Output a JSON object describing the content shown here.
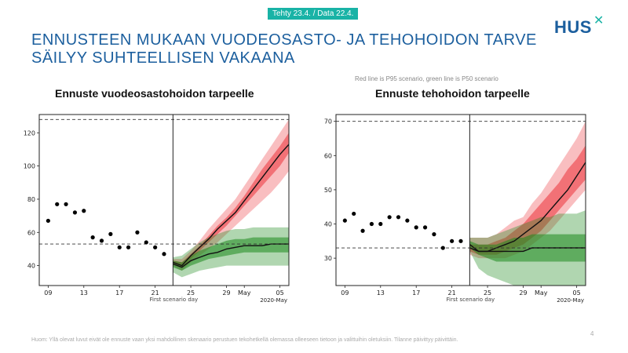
{
  "header": {
    "date_badge": "Tehty 23.4. / Data 22.4.",
    "title": "ENNUSTEEN MUKAAN VUODEOSASTO- JA TEHOHOIDON TARVE SÄILYY SUHTEELLISEN VAKAANA",
    "logo_text": "HUS",
    "logo_mark": "✕"
  },
  "note": "Red line is P95 scenario, green line is P50 scenario",
  "footer": {
    "text": "Huom: Yllä olevat luvut eivät ole ennuste vaan yksi mahdollinen skenaario perustuen tekohetkellä olemassa olleeseen tietoon ja valittuihin oletuksiin. Tilanne päivittyy päivittäin.",
    "page_number": "4"
  },
  "colors": {
    "accent": "#1c5f9e",
    "badge": "#19b3a6",
    "red_band": "#e8151c",
    "green_band": "#1e8a1e"
  },
  "chart_data": [
    {
      "type": "line",
      "title": "Ennuste vuodeosastohoidon tarpeelle",
      "xlabel": "First scenario day",
      "x_end_label": "2020-May",
      "x_tick_labels": [
        "09",
        "13",
        "17",
        "21",
        "25",
        "29",
        "May",
        "05"
      ],
      "x_tick_days": [
        9,
        13,
        17,
        21,
        25,
        29,
        31,
        35
      ],
      "xlim": [
        8,
        36
      ],
      "ylim": [
        28,
        131
      ],
      "y_ticks": [
        40,
        60,
        80,
        100,
        120
      ],
      "scenario_start_day": 23,
      "capacity_line": 128,
      "baseline_line": 53,
      "observed": {
        "x": [
          9,
          10,
          11,
          12,
          13,
          14,
          15,
          16,
          17,
          18,
          19,
          20,
          21,
          22
        ],
        "y": [
          67,
          77,
          77,
          72,
          73,
          57,
          55,
          59,
          51,
          51,
          60,
          54,
          51,
          47
        ]
      },
      "forecast_x": [
        23,
        24,
        25,
        26,
        27,
        28,
        29,
        30,
        31,
        32,
        33,
        34,
        35,
        36
      ],
      "red_outer_low": [
        40,
        37,
        42,
        46,
        50,
        54,
        59,
        64,
        69,
        74,
        79,
        84,
        90,
        97
      ],
      "red_outer_high": [
        44,
        44,
        49,
        55,
        62,
        68,
        74,
        80,
        88,
        96,
        104,
        112,
        120,
        128
      ],
      "red_inner_low": [
        41,
        39,
        44,
        49,
        54,
        59,
        64,
        70,
        76,
        82,
        88,
        94,
        100,
        108
      ],
      "red_inner_high": [
        43,
        42,
        47,
        52,
        58,
        64,
        69,
        75,
        82,
        90,
        98,
        105,
        112,
        120
      ],
      "red_median": [
        42,
        40,
        46,
        51,
        56,
        62,
        67,
        72,
        79,
        86,
        93,
        100,
        107,
        113
      ],
      "green_outer_low": [
        36,
        33,
        35,
        37,
        38,
        39,
        40,
        40,
        40,
        40,
        40,
        40,
        40,
        40
      ],
      "green_outer_high": [
        45,
        46,
        50,
        54,
        57,
        59,
        61,
        62,
        62,
        63,
        63,
        63,
        63,
        63
      ],
      "green_inner_low": [
        39,
        37,
        40,
        42,
        44,
        45,
        46,
        47,
        48,
        48,
        48,
        48,
        48,
        48
      ],
      "green_inner_high": [
        43,
        42,
        46,
        49,
        51,
        53,
        55,
        56,
        56,
        57,
        57,
        57,
        57,
        57
      ],
      "green_median": [
        41,
        39,
        43,
        45,
        47,
        48,
        50,
        51,
        52,
        52,
        52,
        53,
        53,
        53
      ]
    },
    {
      "type": "line",
      "title": "Ennuste tehohoidon tarpeelle",
      "xlabel": "First scenario day",
      "x_end_label": "2020-May",
      "x_tick_labels": [
        "09",
        "13",
        "17",
        "21",
        "25",
        "29",
        "May",
        "05"
      ],
      "x_tick_days": [
        9,
        13,
        17,
        21,
        25,
        29,
        31,
        35
      ],
      "xlim": [
        8,
        36
      ],
      "ylim": [
        22,
        72
      ],
      "y_ticks": [
        30,
        40,
        50,
        60,
        70
      ],
      "scenario_start_day": 23,
      "capacity_line": 70,
      "baseline_line": 33,
      "observed": {
        "x": [
          9,
          10,
          11,
          12,
          13,
          14,
          15,
          16,
          17,
          18,
          19,
          20,
          21,
          22
        ],
        "y": [
          41,
          43,
          38,
          40,
          40,
          42,
          42,
          41,
          39,
          39,
          37,
          33,
          35,
          35
        ]
      },
      "forecast_x": [
        23,
        24,
        25,
        26,
        27,
        28,
        29,
        30,
        31,
        32,
        33,
        34,
        35,
        36
      ],
      "red_outer_low": [
        31,
        30,
        30,
        30,
        30,
        31,
        32,
        34,
        36,
        38,
        41,
        44,
        47,
        50
      ],
      "red_outer_high": [
        36,
        36,
        36,
        37,
        39,
        41,
        42,
        46,
        49,
        53,
        57,
        61,
        65,
        70
      ],
      "red_inner_low": [
        32,
        31,
        31,
        31,
        32,
        33,
        34,
        36,
        38,
        41,
        44,
        47,
        50,
        53
      ],
      "red_inner_high": [
        34,
        34,
        34,
        35,
        36,
        38,
        40,
        43,
        46,
        49,
        52,
        56,
        59,
        63
      ],
      "red_median": [
        33,
        32,
        32,
        33,
        34,
        35,
        37,
        39,
        41,
        44,
        47,
        50,
        54,
        58
      ],
      "green_outer_low": [
        32,
        27,
        25,
        24,
        23,
        22,
        22,
        22,
        22,
        22,
        22,
        22,
        22,
        22
      ],
      "green_outer_high": [
        36,
        36,
        36,
        37,
        38,
        39,
        40,
        41,
        42,
        42,
        43,
        43,
        43,
        44
      ],
      "green_inner_low": [
        33,
        31,
        30,
        29,
        29,
        29,
        29,
        29,
        29,
        29,
        29,
        29,
        29,
        29
      ],
      "green_inner_high": [
        35,
        34,
        34,
        34,
        35,
        36,
        36,
        37,
        37,
        37,
        37,
        37,
        37,
        37
      ],
      "green_median": [
        34,
        32,
        32,
        32,
        32,
        32,
        32,
        33,
        33,
        33,
        33,
        33,
        33,
        33
      ]
    }
  ]
}
